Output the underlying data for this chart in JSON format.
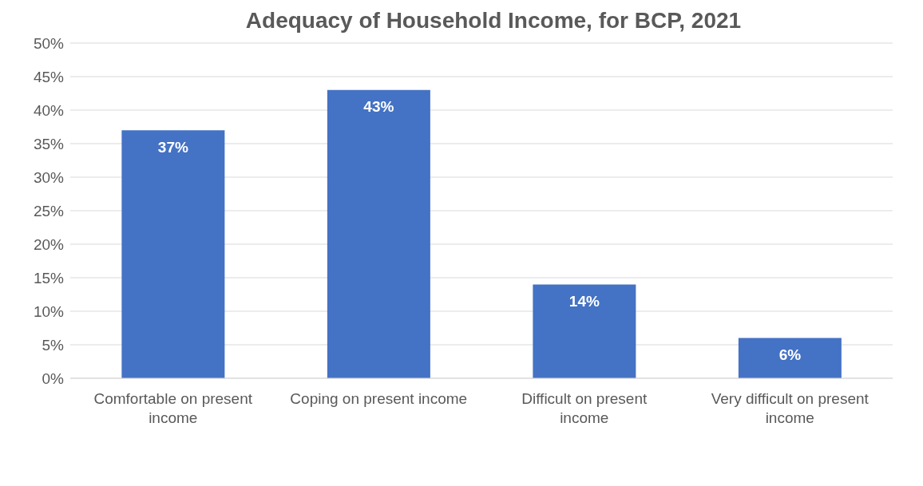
{
  "chart_data": {
    "type": "bar",
    "title": "Adequacy of Household Income, for BCP, 2021",
    "categories": [
      "Comfortable on present income",
      "Coping on present income",
      "Difficult on present income",
      "Very difficult on present income"
    ],
    "values": [
      37,
      43,
      14,
      6
    ],
    "value_labels": [
      "37%",
      "43%",
      "14%",
      "6%"
    ],
    "color": "#4472c4",
    "ylim": [
      0,
      50
    ],
    "yticks": [
      {
        "value": 0,
        "label": "0%"
      },
      {
        "value": 5,
        "label": "5%"
      },
      {
        "value": 10,
        "label": "10%"
      },
      {
        "value": 15,
        "label": "15%"
      },
      {
        "value": 20,
        "label": "20%"
      },
      {
        "value": 25,
        "label": "25%"
      },
      {
        "value": 30,
        "label": "30%"
      },
      {
        "value": 35,
        "label": "35%"
      },
      {
        "value": 40,
        "label": "40%"
      },
      {
        "value": 45,
        "label": "45%"
      },
      {
        "value": 50,
        "label": "50%"
      }
    ],
    "grid": "y"
  }
}
